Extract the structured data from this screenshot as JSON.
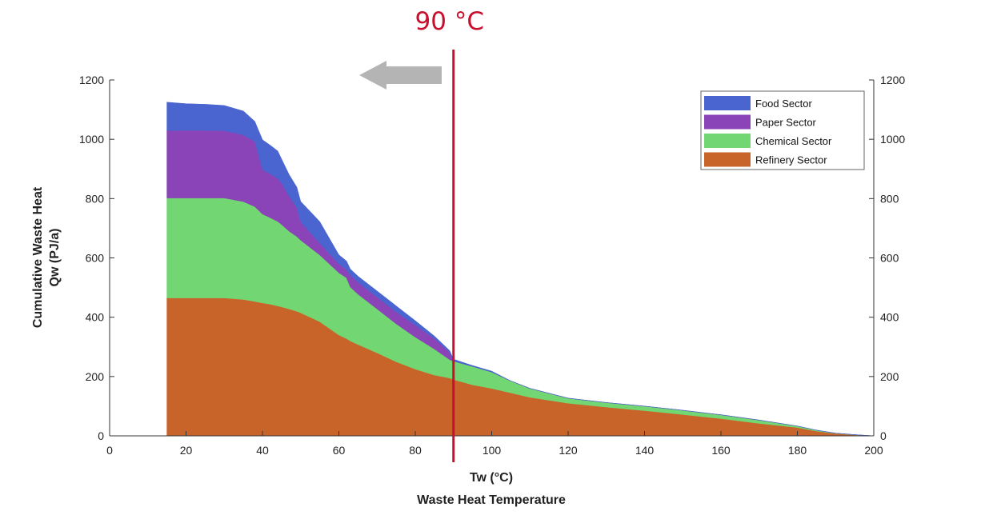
{
  "chart_data": {
    "type": "area",
    "stacked": true,
    "title": "",
    "xlabel": "Tw (°C)",
    "xlabel2": "Waste Heat Temperature",
    "ylabel": "Cumulative Waste Heat",
    "ylabel2": "Qw (PJ/a)",
    "xlim": [
      0,
      200
    ],
    "ylim": [
      0,
      1200
    ],
    "xticks": [
      0,
      20,
      40,
      60,
      80,
      100,
      120,
      140,
      160,
      180,
      200
    ],
    "yticks": [
      0,
      200,
      400,
      600,
      800,
      1000,
      1200
    ],
    "right_axis_ticks": [
      0,
      200,
      400,
      600,
      800,
      1000,
      1200
    ],
    "grid": false,
    "legend_position": "top-right",
    "x": [
      15,
      20,
      25,
      30,
      35,
      38,
      40,
      42,
      44,
      45,
      47,
      49,
      50,
      55,
      60,
      62,
      63,
      65,
      70,
      75,
      80,
      85,
      89,
      90,
      95,
      100,
      105,
      110,
      120,
      130,
      140,
      150,
      160,
      170,
      180,
      185,
      190,
      195,
      200
    ],
    "series": [
      {
        "name": "Refinery Sector",
        "color": "#c8642a",
        "values": [
          465,
          465,
          465,
          465,
          460,
          453,
          448,
          444,
          438,
          435,
          428,
          420,
          415,
          385,
          340,
          328,
          320,
          308,
          280,
          250,
          225,
          205,
          195,
          190,
          172,
          160,
          145,
          130,
          110,
          97,
          85,
          72,
          58,
          42,
          28,
          16,
          8,
          3,
          0
        ]
      },
      {
        "name": "Chemical Sector",
        "color": "#72d672",
        "values": [
          337,
          337,
          337,
          337,
          330,
          320,
          300,
          292,
          285,
          278,
          262,
          252,
          245,
          225,
          210,
          205,
          182,
          170,
          148,
          128,
          108,
          88,
          62,
          62,
          62,
          55,
          40,
          30,
          17,
          15,
          15,
          14,
          13,
          11,
          5,
          3,
          1,
          1,
          0
        ]
      },
      {
        "name": "Paper Sector",
        "color": "#8a44b8",
        "values": [
          228,
          228,
          228,
          227,
          225,
          220,
          150,
          148,
          145,
          140,
          118,
          98,
          62,
          40,
          30,
          28,
          40,
          40,
          40,
          40,
          40,
          35,
          25,
          0,
          0,
          0,
          0,
          0,
          0,
          0,
          0,
          0,
          0,
          0,
          0,
          0,
          0,
          0,
          0
        ]
      },
      {
        "name": "Food Sector",
        "color": "#4a65d0",
        "values": [
          95,
          90,
          88,
          85,
          80,
          67,
          100,
          96,
          92,
          80,
          72,
          68,
          68,
          72,
          30,
          28,
          20,
          20,
          20,
          20,
          15,
          8,
          5,
          6,
          3,
          3,
          0,
          0,
          0,
          0,
          0,
          0,
          0,
          0,
          0,
          0,
          0,
          0,
          0
        ]
      }
    ],
    "annotation": {
      "label": "90 °C",
      "x": 90,
      "color": "#c8102e",
      "arrow_color": "#b4b4b4",
      "arrow_direction": "left"
    }
  }
}
